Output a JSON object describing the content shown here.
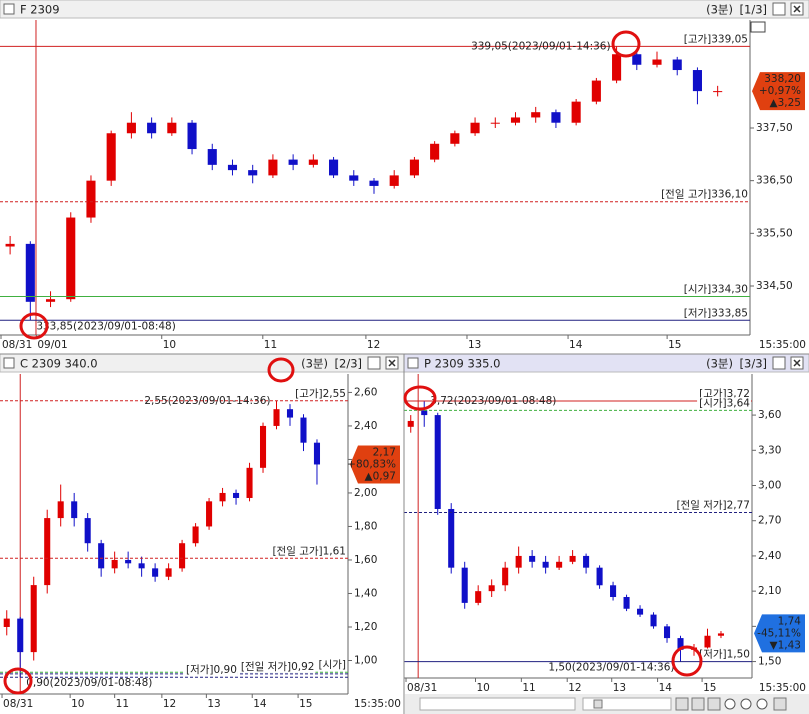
{
  "chart_data": [
    {
      "type": "candlestick",
      "title": "F 2309",
      "interval": "(3분)",
      "page": "[1/3]",
      "time_label": "15:35:00",
      "up_color": "#e00000",
      "down_color": "#1010c8",
      "candles": {
        "open": [
          335.25,
          335.3,
          334.2,
          334.25,
          335.8,
          336.5,
          337.4,
          337.6,
          337.4,
          337.6,
          337.1,
          336.8,
          336.7,
          336.6,
          336.9,
          336.8,
          336.9,
          336.6,
          336.5,
          336.4,
          336.6,
          336.9,
          337.2,
          337.4,
          337.6,
          337.6,
          337.7,
          337.8,
          337.6,
          338.0,
          338.4,
          338.9,
          338.7,
          338.8,
          338.6,
          338.2
        ],
        "high": [
          335.45,
          335.35,
          334.4,
          335.9,
          336.6,
          337.45,
          337.8,
          337.7,
          337.7,
          337.65,
          337.2,
          336.9,
          336.8,
          337.0,
          337.0,
          337.0,
          336.95,
          336.7,
          336.55,
          336.7,
          336.95,
          337.25,
          337.45,
          337.7,
          337.7,
          337.8,
          337.9,
          337.85,
          338.05,
          338.45,
          339.05,
          338.95,
          338.95,
          338.85,
          338.65,
          338.3
        ],
        "low": [
          335.1,
          333.85,
          334.1,
          334.2,
          335.7,
          336.4,
          337.3,
          337.3,
          337.35,
          337.0,
          336.7,
          336.6,
          336.45,
          336.55,
          336.7,
          336.75,
          336.55,
          336.4,
          336.25,
          336.35,
          336.55,
          336.85,
          337.15,
          337.35,
          337.5,
          337.55,
          337.6,
          337.5,
          337.55,
          337.95,
          338.35,
          338.6,
          338.65,
          338.5,
          337.95,
          338.1
        ],
        "close": [
          335.3,
          334.2,
          334.25,
          335.8,
          336.5,
          337.4,
          337.6,
          337.4,
          337.6,
          337.1,
          336.8,
          336.7,
          336.6,
          336.9,
          336.8,
          336.9,
          336.6,
          336.5,
          336.4,
          336.6,
          336.9,
          337.2,
          337.4,
          337.6,
          337.6,
          337.7,
          337.8,
          337.6,
          338.0,
          338.4,
          338.9,
          338.7,
          338.8,
          338.6,
          338.2,
          338.2
        ]
      },
      "xlim": [
        -0.5,
        36.6
      ],
      "xticks": [
        {
          "value": -0.45,
          "label": "08/31"
        },
        {
          "value": 1.3,
          "label": "09/01"
        },
        {
          "value": 7.5,
          "label": "10"
        },
        {
          "value": 12.5,
          "label": "11"
        },
        {
          "value": 17.6,
          "label": "12"
        },
        {
          "value": 22.6,
          "label": "13"
        },
        {
          "value": 27.6,
          "label": "14"
        },
        {
          "value": 32.5,
          "label": "15"
        }
      ],
      "vline": 1.28,
      "ylim": [
        333.57,
        339.55
      ],
      "yticks": [
        {
          "value": 334.5,
          "label": "334,50"
        },
        {
          "value": 335.5,
          "label": "335,50"
        },
        {
          "value": 336.5,
          "label": "336,50"
        },
        {
          "value": 337.5,
          "label": "337,50"
        }
      ],
      "ref_lines": [
        {
          "value": 339.05,
          "label": "[고가]339,05",
          "color": "#d02020",
          "style": "solid"
        },
        {
          "value": 336.1,
          "label": "[전일 고가]336,10",
          "color": "#d02020",
          "style": "dashed"
        },
        {
          "value": 334.3,
          "label": "[시가]334,30",
          "color": "#40b040",
          "style": "solid"
        },
        {
          "value": 333.85,
          "label": "[저가]333,85",
          "color": "#202080",
          "style": "solid"
        }
      ],
      "annotations": [
        {
          "value": 339.05,
          "text": "339,05(2023/09/01-14:36)"
        },
        {
          "value": 333.85,
          "text": "333,85(2023/09/01-08:48)"
        }
      ],
      "current": {
        "value": 338.2,
        "label": "338,20",
        "change_pct": "+0,97%",
        "change": "▲3,25",
        "color": "#e04010"
      }
    },
    {
      "type": "candlestick",
      "title": "C 2309 340.0",
      "interval": "(3분)",
      "page": "[2/3]",
      "time_label": "15:35:00",
      "up_color": "#e00000",
      "down_color": "#1010c8",
      "candles": {
        "open": [
          1.2,
          1.25,
          1.05,
          1.45,
          1.85,
          1.95,
          1.85,
          1.7,
          1.55,
          1.6,
          1.58,
          1.55,
          1.5,
          1.55,
          1.7,
          1.8,
          1.95,
          2.0,
          1.97,
          2.15,
          2.4,
          2.5,
          2.45,
          2.3
        ],
        "high": [
          1.3,
          1.26,
          1.5,
          1.9,
          2.05,
          2.0,
          1.88,
          1.72,
          1.65,
          1.65,
          1.62,
          1.58,
          1.58,
          1.72,
          1.82,
          1.97,
          2.03,
          2.02,
          2.18,
          2.42,
          2.55,
          2.53,
          2.47,
          2.32
        ],
        "low": [
          1.15,
          0.9,
          1.0,
          1.4,
          1.8,
          1.8,
          1.65,
          1.5,
          1.52,
          1.55,
          1.5,
          1.47,
          1.48,
          1.53,
          1.68,
          1.78,
          1.92,
          1.93,
          1.95,
          2.12,
          2.38,
          2.4,
          2.25,
          2.05
        ],
        "close": [
          1.25,
          1.05,
          1.45,
          1.85,
          1.95,
          1.85,
          1.7,
          1.55,
          1.6,
          1.58,
          1.55,
          1.5,
          1.55,
          1.7,
          1.8,
          1.95,
          2.0,
          1.97,
          2.15,
          2.4,
          2.5,
          2.45,
          2.3,
          2.17
        ]
      },
      "xlim": [
        -0.5,
        25.3
      ],
      "xticks": [
        {
          "value": -0.35,
          "label": "08/31"
        },
        {
          "value": 4.7,
          "label": "10"
        },
        {
          "value": 8.0,
          "label": "11"
        },
        {
          "value": 11.5,
          "label": "12"
        },
        {
          "value": 14.8,
          "label": "13"
        },
        {
          "value": 18.2,
          "label": "14"
        },
        {
          "value": 21.6,
          "label": "15"
        }
      ],
      "vline": 1.0,
      "ylim": [
        0.8,
        2.71
      ],
      "yticks": [
        {
          "value": 1,
          "label": "1,00"
        },
        {
          "value": 1.2,
          "label": "1,20"
        },
        {
          "value": 1.4,
          "label": "1,40"
        },
        {
          "value": 1.6,
          "label": "1,60"
        },
        {
          "value": 1.8,
          "label": "1,80"
        },
        {
          "value": 2,
          "label": "2,00"
        },
        {
          "value": 2.2,
          "label": "2,20"
        },
        {
          "value": 2.4,
          "label": "2,40"
        },
        {
          "value": 2.6,
          "label": "2,60"
        }
      ],
      "ref_lines": [
        {
          "value": 2.55,
          "label": "[고가]2,55",
          "color": "#d02020",
          "style": "dashed"
        },
        {
          "value": 1.61,
          "label": "[전일 고가]1,61",
          "color": "#d02020",
          "style": "dashed"
        },
        {
          "value": 0.93,
          "label": "[시가]",
          "color": "#40b040",
          "style": "dashed"
        },
        {
          "value": 0.92,
          "label": "[전일 저가]0,92",
          "color": "#202080",
          "style": "dashed"
        },
        {
          "value": 0.9,
          "label": "[저가]0,90",
          "color": "#202080",
          "style": "dashed"
        }
      ],
      "annotations": [
        {
          "value": 2.55,
          "text": "2,55(2023/09/01-14:36)"
        },
        {
          "value": 0.9,
          "text": "0,90(2023/09/01-08:48)"
        }
      ],
      "current": {
        "value": 2.17,
        "label": "2,17",
        "change_pct": "+80,83%",
        "change": "▲0,97",
        "color": "#e04010"
      }
    },
    {
      "type": "candlestick",
      "title": "P 2309 335.0",
      "interval": "(3분)",
      "page": "[3/3]",
      "time_label": "15:35:00",
      "up_color": "#e00000",
      "down_color": "#1010c8",
      "candles": {
        "open": [
          3.5,
          3.64,
          3.6,
          2.8,
          2.3,
          2.0,
          2.1,
          2.15,
          2.3,
          2.4,
          2.35,
          2.3,
          2.35,
          2.4,
          2.3,
          2.15,
          2.05,
          1.95,
          1.9,
          1.8,
          1.7,
          1.6,
          1.62,
          1.72
        ],
        "high": [
          3.6,
          3.72,
          3.62,
          2.85,
          2.35,
          2.15,
          2.2,
          2.35,
          2.48,
          2.45,
          2.4,
          2.4,
          2.45,
          2.42,
          2.32,
          2.18,
          2.07,
          1.98,
          1.92,
          1.82,
          1.72,
          1.65,
          1.78,
          1.76
        ],
        "low": [
          3.45,
          3.5,
          2.75,
          2.25,
          1.95,
          1.98,
          2.05,
          2.1,
          2.25,
          2.3,
          2.25,
          2.28,
          2.33,
          2.25,
          2.12,
          2.02,
          1.93,
          1.88,
          1.78,
          1.66,
          1.5,
          1.55,
          1.6,
          1.7
        ],
        "close": [
          3.55,
          3.6,
          2.8,
          2.3,
          2.0,
          2.1,
          2.15,
          2.3,
          2.4,
          2.35,
          2.3,
          2.35,
          2.4,
          2.3,
          2.15,
          2.05,
          1.95,
          1.9,
          1.8,
          1.7,
          1.6,
          1.62,
          1.72,
          1.74
        ]
      },
      "xlim": [
        -0.5,
        25.3
      ],
      "xticks": [
        {
          "value": -0.35,
          "label": "08/31"
        },
        {
          "value": 4.8,
          "label": "10"
        },
        {
          "value": 8.2,
          "label": "11"
        },
        {
          "value": 11.6,
          "label": "12"
        },
        {
          "value": 14.9,
          "label": "13"
        },
        {
          "value": 18.3,
          "label": "14"
        },
        {
          "value": 21.6,
          "label": "15"
        }
      ],
      "vline": 0.55,
      "ylim": [
        1.36,
        3.95
      ],
      "yticks": [
        {
          "value": 1.5,
          "label": "1,50"
        },
        {
          "value": 1.8,
          "label": "1,80"
        },
        {
          "value": 2.1,
          "label": "2,10"
        },
        {
          "value": 2.4,
          "label": "2,40"
        },
        {
          "value": 2.7,
          "label": "2,70"
        },
        {
          "value": 3,
          "label": "3,00"
        },
        {
          "value": 3.3,
          "label": "3,30"
        },
        {
          "value": 3.6,
          "label": "3,60"
        }
      ],
      "ref_lines": [
        {
          "value": 3.72,
          "label": "[고가]3,72",
          "color": "#d02020",
          "style": "solid"
        },
        {
          "value": 3.64,
          "label": "[시가]3,64",
          "color": "#40b040",
          "style": "dashed"
        },
        {
          "value": 2.77,
          "label": "[전일 저가]2,77",
          "color": "#202080",
          "style": "dashed"
        },
        {
          "value": 1.5,
          "label": "[저가]1,50",
          "color": "#202080",
          "style": "solid"
        }
      ],
      "annotations": [
        {
          "value": 3.72,
          "text": "3,72(2023/09/01-08:48)"
        },
        {
          "value": 1.5,
          "text": "1,50(2023/09/01-14:36)"
        }
      ],
      "current": {
        "value": 1.74,
        "label": "1,74",
        "change_pct": "-45,11%",
        "change": "▼1,43",
        "color": "#2070e0"
      }
    }
  ]
}
